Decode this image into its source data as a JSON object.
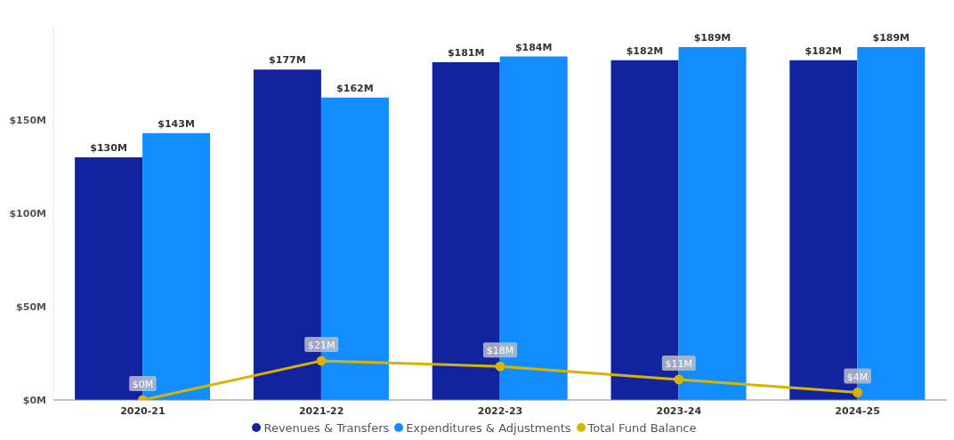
{
  "chart_data": {
    "type": "bar",
    "categories": [
      "2020-21",
      "2021-22",
      "2022-23",
      "2023-24",
      "2024-25"
    ],
    "series": [
      {
        "name": "Revenues & Transfers",
        "color": "#12239e",
        "values": [
          130,
          177,
          181,
          182,
          182
        ],
        "value_labels": [
          "$130M",
          "$177M",
          "$181M",
          "$182M",
          "$182M"
        ]
      },
      {
        "name": "Expenditures & Adjustments",
        "color": "#118dff",
        "values": [
          143,
          162,
          184,
          189,
          189
        ],
        "value_labels": [
          "$143M",
          "$162M",
          "$184M",
          "$189M",
          "$189M"
        ]
      },
      {
        "name": "Total Fund Balance",
        "type": "line",
        "color": "#d9b300",
        "values": [
          0,
          21,
          18,
          11,
          4
        ],
        "value_labels": [
          "$0M",
          "$21M",
          "$18M",
          "$11M",
          "$4M"
        ],
        "marker": "circle"
      }
    ],
    "ylim": [
      0,
      200
    ],
    "yticks": [
      {
        "value": 0,
        "label": "$0M"
      },
      {
        "value": 50,
        "label": "$50M"
      },
      {
        "value": 100,
        "label": "$100M"
      },
      {
        "value": 150,
        "label": "$150M"
      }
    ],
    "grid": false,
    "legend": "bottom"
  }
}
